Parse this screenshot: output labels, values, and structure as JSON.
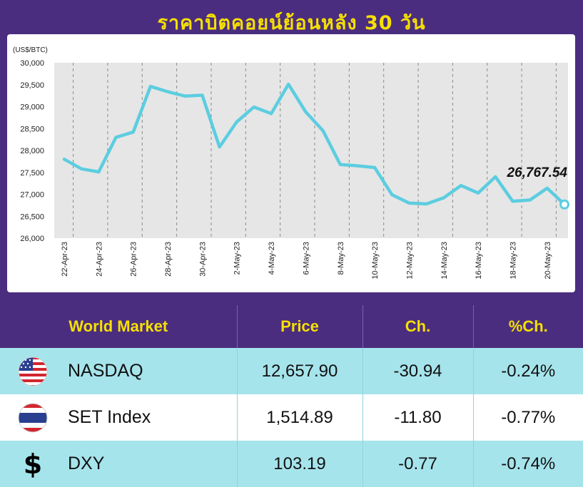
{
  "chart_data": {
    "type": "line",
    "title": "ราคาบิตคอยน์ย้อนหลัง 30 วัน",
    "ylabel": "(US$/BTC)",
    "ylim": [
      26000,
      30000
    ],
    "yticks": [
      26000,
      26500,
      27000,
      27500,
      28000,
      28500,
      29000,
      29500,
      30000
    ],
    "ytick_labels": [
      "26,000",
      "26,500",
      "27,000",
      "27,500",
      "28,000",
      "28,500",
      "29,000",
      "29,500",
      "30,000"
    ],
    "x": [
      "22-Apr-23",
      "23-Apr-23",
      "24-Apr-23",
      "25-Apr-23",
      "26-Apr-23",
      "27-Apr-23",
      "28-Apr-23",
      "29-Apr-23",
      "30-Apr-23",
      "1-May-23",
      "2-May-23",
      "3-May-23",
      "4-May-23",
      "5-May-23",
      "6-May-23",
      "7-May-23",
      "8-May-23",
      "9-May-23",
      "10-May-23",
      "11-May-23",
      "12-May-23",
      "13-May-23",
      "14-May-23",
      "15-May-23",
      "16-May-23",
      "17-May-23",
      "18-May-23",
      "19-May-23",
      "20-May-23",
      "21-May-23"
    ],
    "xtick_labels": [
      "22-Apr-23",
      "24-Apr-23",
      "26-Apr-23",
      "28-Apr-23",
      "30-Apr-23",
      "2-May-23",
      "4-May-23",
      "6-May-23",
      "8-May-23",
      "10-May-23",
      "12-May-23",
      "14-May-23",
      "16-May-23",
      "18-May-23",
      "20-May-23"
    ],
    "values": [
      27800,
      27580,
      27510,
      28300,
      28420,
      29460,
      29340,
      29240,
      29260,
      28080,
      28650,
      28990,
      28840,
      29510,
      28880,
      28450,
      27680,
      27650,
      27610,
      26990,
      26800,
      26780,
      26920,
      27200,
      27030,
      27400,
      26840,
      26870,
      27140,
      26767.54
    ],
    "last_value_label": "26,767.54",
    "line_color": "#5ccde0",
    "grid": "vertical dashed"
  },
  "table": {
    "headers": [
      "World Market",
      "Price",
      "Ch.",
      "%Ch."
    ],
    "rows": [
      {
        "name": "NASDAQ",
        "price": "12,657.90",
        "change": "-30.94",
        "pct": "-0.24%",
        "icon": "us-flag-icon"
      },
      {
        "name": "SET Index",
        "price": "1,514.89",
        "change": "-11.80",
        "pct": "-0.77%",
        "icon": "thai-flag-icon"
      },
      {
        "name": "DXY",
        "price": "103.19",
        "change": "-0.77",
        "pct": "-0.74%",
        "icon": "dollar-icon",
        "icon_glyph": "$"
      }
    ]
  },
  "colors": {
    "background": "#4b2d7f",
    "title": "#f5e000",
    "row_cyan": "#a6e4ec"
  }
}
